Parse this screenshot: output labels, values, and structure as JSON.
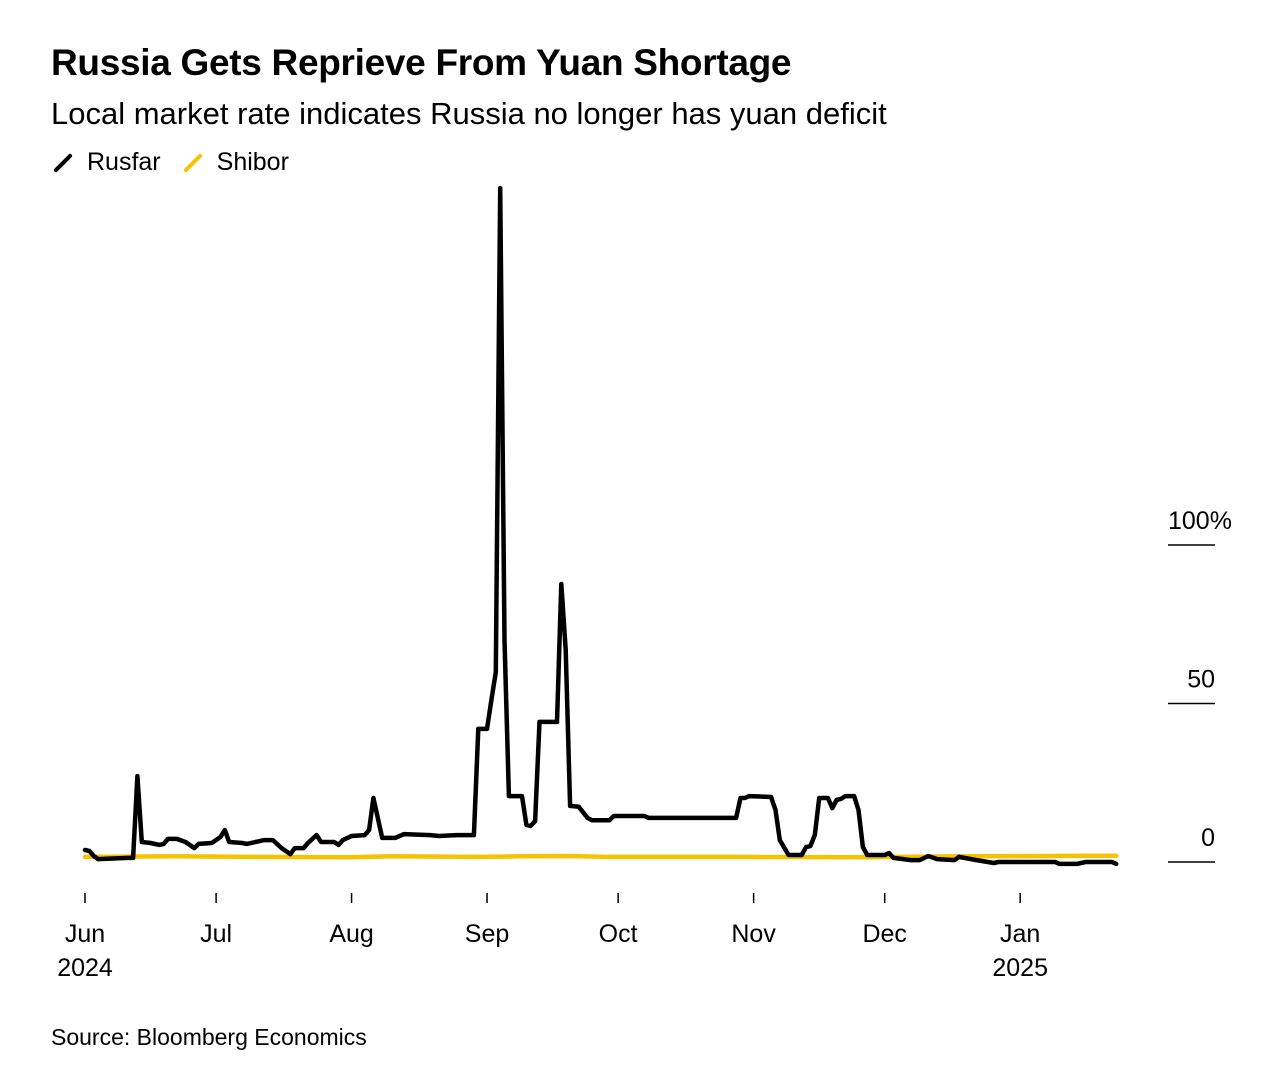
{
  "chart_data": {
    "type": "line",
    "title": "Russia Gets Reprieve From Yuan Shortage",
    "subtitle": "Local market rate indicates Russia no longer has yuan deficit",
    "source": "Source: Bloomberg Economics",
    "x_unit": "days since 2024-06-01",
    "xlim": [
      0,
      237
    ],
    "ylim": [
      -5,
      215
    ],
    "yticks": [
      {
        "value": 0,
        "label": "0"
      },
      {
        "value": 50,
        "label": "50"
      },
      {
        "value": 100,
        "label": "100%"
      }
    ],
    "xticks": [
      {
        "value": 0,
        "label": "Jun",
        "year": "2024"
      },
      {
        "value": 30,
        "label": "Jul"
      },
      {
        "value": 61,
        "label": "Aug"
      },
      {
        "value": 92,
        "label": "Sep"
      },
      {
        "value": 122,
        "label": "Oct"
      },
      {
        "value": 153,
        "label": "Nov"
      },
      {
        "value": 183,
        "label": "Dec"
      },
      {
        "value": 214,
        "label": "Jan",
        "year": "2025"
      }
    ],
    "legend_position": "top-left",
    "series": [
      {
        "name": "Rusfar",
        "color": "#000000",
        "points": [
          [
            0,
            3.8
          ],
          [
            1,
            3.5
          ],
          [
            2,
            1.9
          ],
          [
            3,
            0.9
          ],
          [
            10,
            1.3
          ],
          [
            11,
            1.3
          ],
          [
            12,
            27.1
          ],
          [
            13,
            6.3
          ],
          [
            15,
            6.0
          ],
          [
            17,
            5.4
          ],
          [
            18,
            5.7
          ],
          [
            19,
            7.3
          ],
          [
            21,
            7.3
          ],
          [
            23,
            6.3
          ],
          [
            25,
            4.4
          ],
          [
            26,
            5.7
          ],
          [
            29,
            6.0
          ],
          [
            31,
            7.9
          ],
          [
            32,
            10.1
          ],
          [
            33,
            6.3
          ],
          [
            36,
            6.0
          ],
          [
            37,
            5.7
          ],
          [
            40,
            6.6
          ],
          [
            41,
            6.9
          ],
          [
            43,
            6.9
          ],
          [
            45,
            4.4
          ],
          [
            47,
            2.5
          ],
          [
            48,
            4.4
          ],
          [
            50,
            4.4
          ],
          [
            51,
            6.0
          ],
          [
            53,
            8.5
          ],
          [
            54,
            6.3
          ],
          [
            57,
            6.3
          ],
          [
            58,
            5.4
          ],
          [
            59,
            6.9
          ],
          [
            61,
            8.2
          ],
          [
            64,
            8.5
          ],
          [
            65,
            10.1
          ],
          [
            66,
            20.2
          ],
          [
            68,
            7.6
          ],
          [
            71,
            7.6
          ],
          [
            73,
            8.8
          ],
          [
            79,
            8.5
          ],
          [
            81,
            8.2
          ],
          [
            85,
            8.5
          ],
          [
            89,
            8.5
          ],
          [
            90,
            42.0
          ],
          [
            92,
            42.0
          ],
          [
            93,
            51.1
          ],
          [
            94,
            59.9
          ],
          [
            95,
            212.6
          ],
          [
            96,
            70.0
          ],
          [
            97,
            20.8
          ],
          [
            100,
            20.8
          ],
          [
            101,
            11.7
          ],
          [
            102,
            11.4
          ],
          [
            103,
            12.9
          ],
          [
            104,
            44.2
          ],
          [
            108,
            44.2
          ],
          [
            109,
            87.7
          ],
          [
            110,
            66.9
          ],
          [
            111,
            17.7
          ],
          [
            113,
            17.4
          ],
          [
            115,
            13.9
          ],
          [
            116,
            13.2
          ],
          [
            120,
            13.2
          ],
          [
            121,
            14.5
          ],
          [
            128,
            14.5
          ],
          [
            129,
            13.9
          ],
          [
            136,
            13.9
          ],
          [
            149,
            13.9
          ],
          [
            150,
            20.2
          ],
          [
            151,
            20.2
          ],
          [
            152,
            20.8
          ],
          [
            157,
            20.5
          ],
          [
            158,
            16.4
          ],
          [
            159,
            6.9
          ],
          [
            161,
            2.2
          ],
          [
            164,
            2.2
          ],
          [
            165,
            4.7
          ],
          [
            166,
            5.0
          ],
          [
            167,
            8.5
          ],
          [
            168,
            20.2
          ],
          [
            170,
            20.2
          ],
          [
            171,
            17.0
          ],
          [
            172,
            19.6
          ],
          [
            173,
            19.9
          ],
          [
            174,
            20.8
          ],
          [
            176,
            20.8
          ],
          [
            177,
            16.4
          ],
          [
            178,
            4.7
          ],
          [
            179,
            2.2
          ],
          [
            183,
            2.2
          ],
          [
            184,
            2.8
          ],
          [
            185,
            1.3
          ],
          [
            189,
            0.6
          ],
          [
            191,
            0.6
          ],
          [
            193,
            1.9
          ],
          [
            195,
            0.9
          ],
          [
            199,
            0.6
          ],
          [
            200,
            1.6
          ],
          [
            204,
            0.6
          ],
          [
            208,
            -0.3
          ],
          [
            209,
            0
          ],
          [
            222,
            0
          ],
          [
            223,
            -0.6
          ],
          [
            227,
            -0.6
          ],
          [
            229,
            0
          ],
          [
            235,
            0
          ],
          [
            236,
            -0.6
          ]
        ]
      },
      {
        "name": "Shibor",
        "color": "#F5C400",
        "points": [
          [
            0,
            1.6
          ],
          [
            20,
            1.8
          ],
          [
            40,
            1.6
          ],
          [
            60,
            1.5
          ],
          [
            70,
            1.8
          ],
          [
            90,
            1.6
          ],
          [
            100,
            1.8
          ],
          [
            110,
            1.9
          ],
          [
            120,
            1.6
          ],
          [
            150,
            1.6
          ],
          [
            180,
            1.5
          ],
          [
            200,
            1.8
          ],
          [
            220,
            1.9
          ],
          [
            230,
            2.0
          ],
          [
            236,
            2.0
          ]
        ]
      }
    ]
  }
}
